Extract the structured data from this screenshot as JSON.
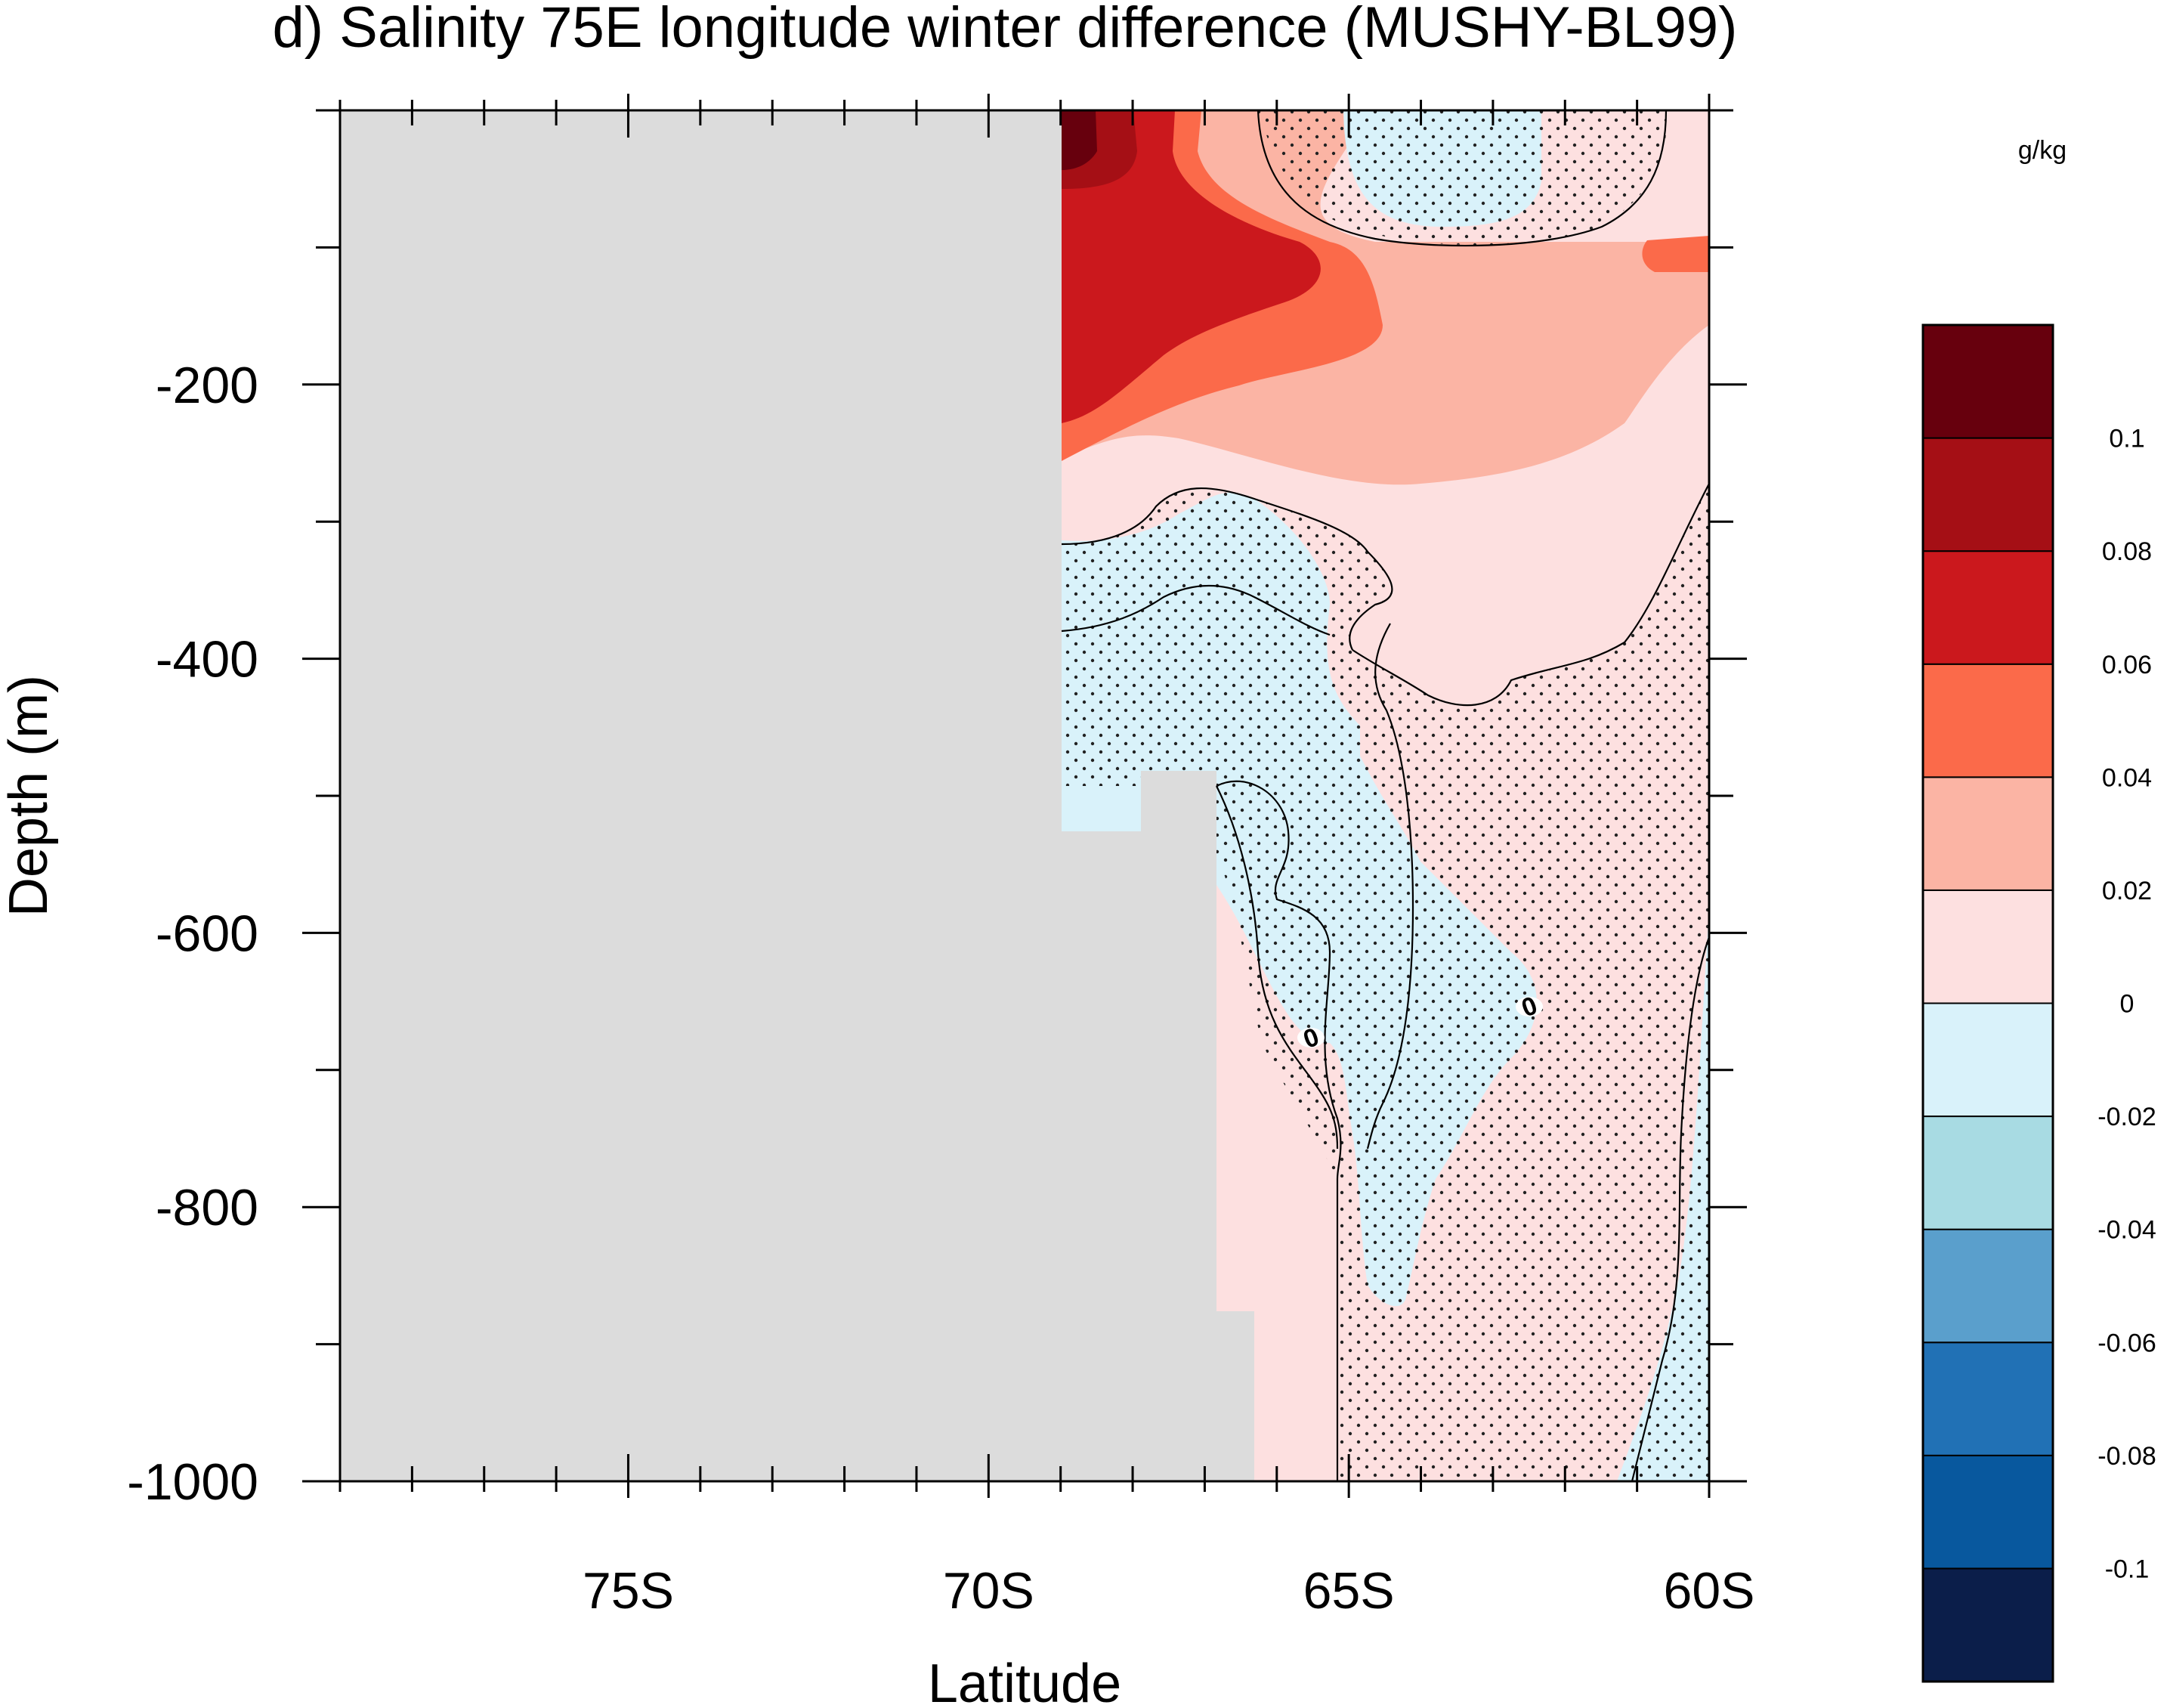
{
  "chart_data": {
    "type": "heatmap",
    "title": "d) Salinity 75E longitude winter difference (MUSHY-BL99)",
    "xlabel": "Latitude",
    "ylabel": "Depth (m)",
    "xlim": [
      -79,
      -60
    ],
    "ylim": [
      -1000,
      0
    ],
    "x_major_ticks": [
      {
        "value": -75,
        "label": "75S"
      },
      {
        "value": -70,
        "label": "70S"
      },
      {
        "value": -65,
        "label": "65S"
      },
      {
        "value": -60,
        "label": "60S"
      }
    ],
    "y_major_ticks": [
      {
        "value": -200,
        "label": "-200"
      },
      {
        "value": -400,
        "label": "-400"
      },
      {
        "value": -600,
        "label": "-600"
      },
      {
        "value": -800,
        "label": "-800"
      },
      {
        "value": -1000,
        "label": "-1000"
      }
    ],
    "land_mask_color": "#dcdcdc",
    "stippling": "dots mark regions of statistical significance",
    "contour_lines": [
      {
        "level": 0,
        "label": "0"
      }
    ],
    "colorbar": {
      "units": "g/kg",
      "levels": [
        -0.1,
        -0.08,
        -0.06,
        -0.04,
        -0.02,
        0,
        0.02,
        0.04,
        0.06,
        0.08,
        0.1
      ],
      "level_labels": [
        "-0.1",
        "-0.08",
        "-0.06",
        "-0.04",
        "-0.02",
        "0",
        "0.02",
        "0.04",
        "0.06",
        "0.08",
        "0.1"
      ],
      "colors": [
        "#0b1e4a",
        "#08589e",
        "#2171b5",
        "#5a9fcc",
        "#a8dbe3",
        "#d9f2fa",
        "#fde0e0",
        "#fbb4a4",
        "#fb6a4a",
        "#cb181d",
        "#a50f15",
        "#67000d"
      ]
    },
    "regions": [
      {
        "name": "surface-core",
        "class": "0.1",
        "lat_range": [
          -69,
          -68
        ],
        "depth_range": [
          0,
          -40
        ]
      },
      {
        "name": "upper-strong-positive",
        "class": "0.06-0.1",
        "lat_range": [
          -69,
          -66
        ],
        "depth_range": [
          0,
          -230
        ]
      },
      {
        "name": "near-surface-negative",
        "class": "-0.02-0",
        "lat_range": [
          -64,
          -62.5
        ],
        "depth_range": [
          0,
          -80
        ]
      },
      {
        "name": "subsurface-negative-tongue",
        "class": "-0.02-0",
        "lat_range": [
          -69,
          -62.5
        ],
        "depth_range": [
          -300,
          -900
        ]
      },
      {
        "name": "deep-positive",
        "class": "0-0.02",
        "lat_range": [
          -66,
          -61
        ],
        "depth_range": [
          -400,
          -1000
        ]
      }
    ]
  }
}
